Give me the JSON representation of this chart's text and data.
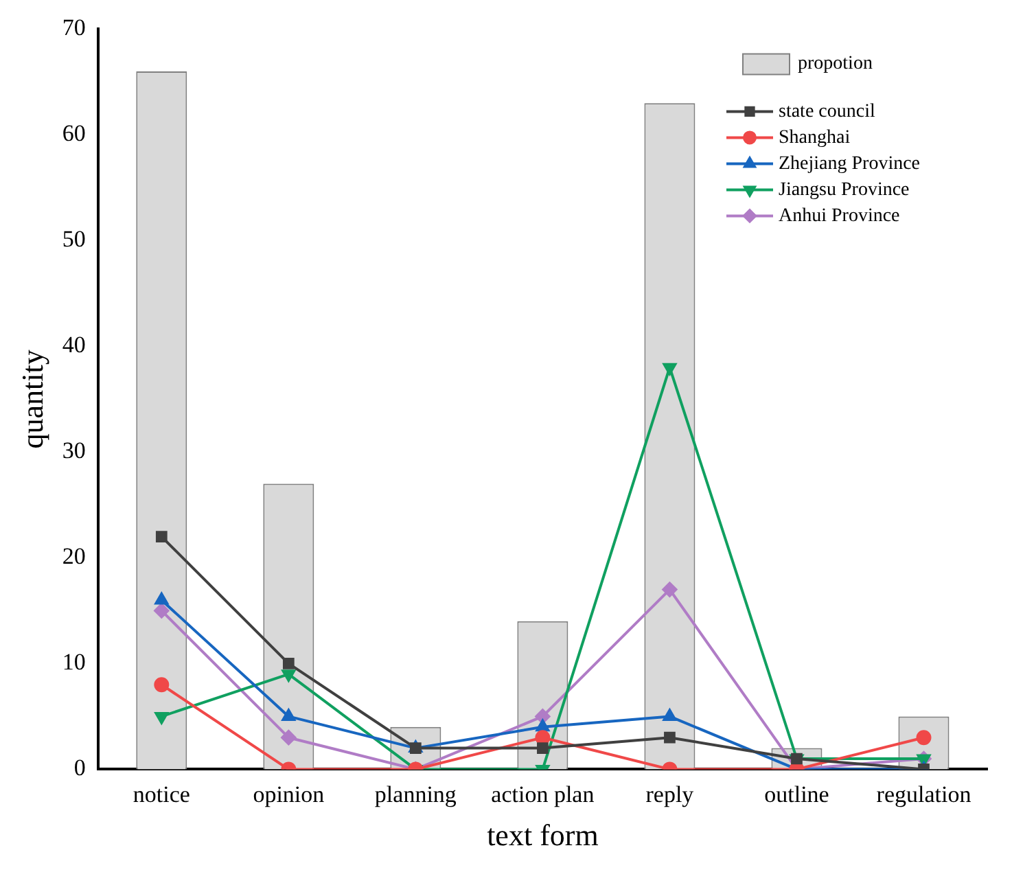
{
  "chart_data": {
    "type": "bar",
    "xlabel": "text form",
    "ylabel": "quantity",
    "categories": [
      "notice",
      "opinion",
      "planning",
      "action plan",
      "reply",
      "outline",
      "regulation"
    ],
    "series": [
      {
        "name": "propotion",
        "color": "#d9d9d9",
        "values": [
          66,
          27,
          4,
          14,
          63,
          2,
          5
        ]
      },
      {
        "name": "state council",
        "type": "line",
        "marker": "square",
        "color": "#404040",
        "values": [
          22,
          10,
          2,
          2,
          3,
          1,
          0
        ]
      },
      {
        "name": "Shanghai",
        "type": "line",
        "marker": "circle",
        "color": "#f04848",
        "values": [
          8,
          0,
          0,
          3,
          0,
          0,
          3
        ]
      },
      {
        "name": "Zhejiang Province",
        "type": "line",
        "marker": "triangle",
        "color": "#1766c0",
        "values": [
          16,
          5,
          2,
          4,
          5,
          0,
          0
        ]
      },
      {
        "name": "Jiangsu Province",
        "type": "line",
        "marker": "triangle",
        "color": "#10a060",
        "values": [
          5,
          9,
          0,
          0,
          38,
          1,
          1
        ]
      },
      {
        "name": "Anhui Province",
        "type": "line",
        "marker": "diamond",
        "color": "#b07cc6",
        "values": [
          15,
          3,
          0,
          5,
          17,
          0,
          1
        ]
      }
    ],
    "ylim": [
      0,
      70
    ],
    "yticks": [
      0,
      10,
      20,
      30,
      40,
      50,
      60,
      70
    ],
    "grid": false,
    "legend": "top right"
  }
}
